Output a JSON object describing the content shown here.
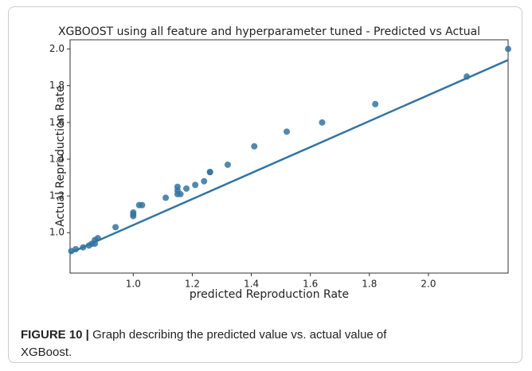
{
  "chart_data": {
    "type": "scatter",
    "title": "XGBOOST using all feature and hyperparameter tuned - Predicted vs Actual",
    "x_label": "predicted Reproduction Rate",
    "y_label": "Actual Reproduction Rate",
    "color": "#3274a1",
    "x": [
      0.79,
      0.805,
      0.83,
      0.85,
      0.86,
      0.87,
      0.87,
      0.88,
      0.94,
      1.0,
      1.0,
      1.0,
      1.02,
      1.03,
      1.11,
      1.15,
      1.15,
      1.15,
      1.16,
      1.18,
      1.21,
      1.24,
      1.26,
      1.26,
      1.32,
      1.41,
      1.52,
      1.64,
      1.82,
      2.13,
      2.27
    ],
    "y": [
      0.9,
      0.91,
      0.92,
      0.93,
      0.94,
      0.94,
      0.96,
      0.97,
      1.03,
      1.09,
      1.1,
      1.11,
      1.15,
      1.15,
      1.19,
      1.25,
      1.23,
      1.21,
      1.21,
      1.24,
      1.26,
      1.28,
      1.33,
      1.33,
      1.37,
      1.47,
      1.55,
      1.6,
      1.7,
      1.85,
      2.0
    ],
    "fit": {
      "x": [
        0.786,
        2.27
      ],
      "y": [
        0.89,
        1.94
      ]
    },
    "xlim": [
      0.786,
      2.27
    ],
    "ylim": [
      0.78,
      2.05
    ],
    "xticks": [
      {
        "value": 1,
        "label": "1.0"
      },
      {
        "value": 1.2,
        "label": "1.2"
      },
      {
        "value": 1.4,
        "label": "1.4"
      },
      {
        "value": 1.6,
        "label": "1.6"
      },
      {
        "value": 1.8,
        "label": "1.8"
      },
      {
        "value": 2,
        "label": "2.0"
      }
    ],
    "yticks": [
      {
        "value": 1,
        "label": "1.0"
      },
      {
        "value": 1.2,
        "label": "1.2"
      },
      {
        "value": 1.4,
        "label": "1.4"
      },
      {
        "value": 1.6,
        "label": "1.6"
      },
      {
        "value": 1.8,
        "label": "1.8"
      },
      {
        "value": 2,
        "label": "2.0"
      }
    ]
  },
  "caption": {
    "label": "FIGURE 10 |",
    "text": "Graph describing the predicted value vs. actual value of XGBoost."
  }
}
